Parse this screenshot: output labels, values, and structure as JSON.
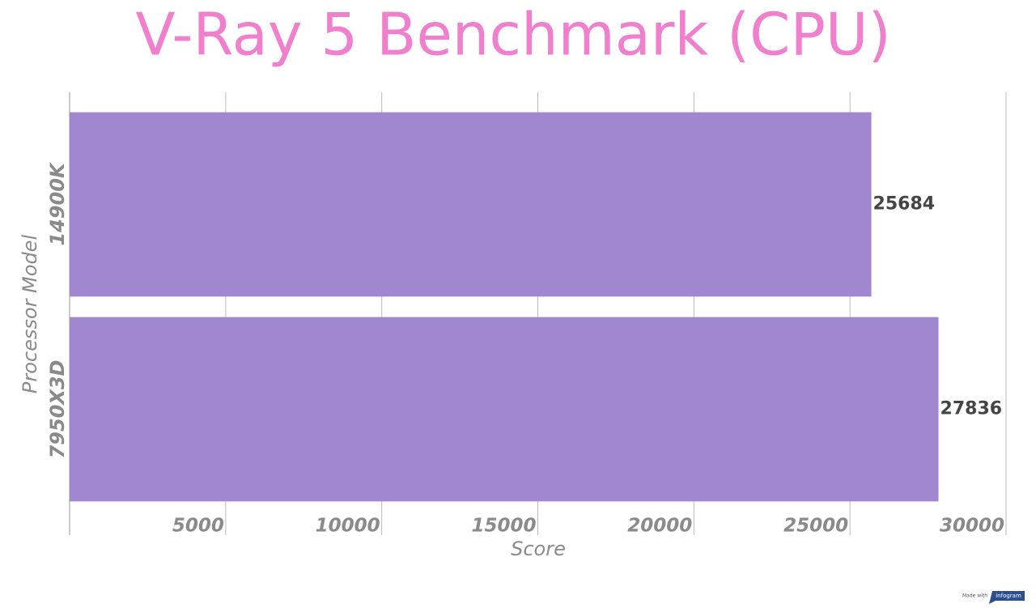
{
  "chart_data": {
    "type": "bar",
    "orientation": "horizontal",
    "title": "V-Ray 5 Benchmark (CPU)",
    "x_label": "Score",
    "y_label": "Processor Model",
    "categories": [
      "14900K",
      "7950X3D"
    ],
    "values": [
      25684,
      27836
    ],
    "color": "#a087d0",
    "xlim": [
      0,
      30000
    ],
    "xticks": [
      5000,
      10000,
      15000,
      20000,
      25000,
      30000
    ],
    "grid": true,
    "footer": {
      "made_with": "Made with",
      "brand": "infogram"
    }
  }
}
